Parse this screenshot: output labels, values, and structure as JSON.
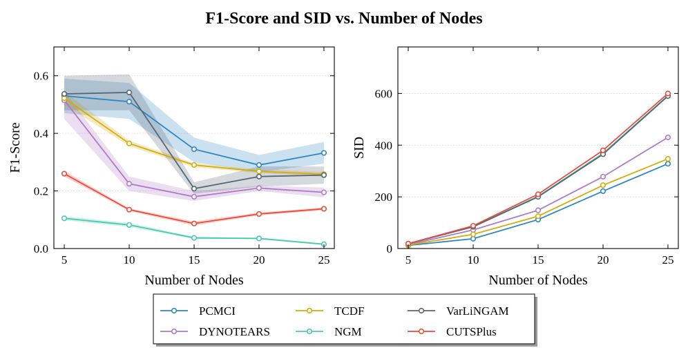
{
  "suptitle": "F1-Score  and SID vs. Number of Nodes",
  "chart_data": [
    {
      "type": "line",
      "id": "f1",
      "title": "",
      "xlabel": "Number of Nodes",
      "ylabel": "F1-Score",
      "x": [
        5,
        10,
        15,
        20,
        25
      ],
      "xlim": [
        4.2,
        25.8
      ],
      "ylim": [
        0,
        0.7
      ],
      "xticks": [
        5,
        10,
        15,
        20,
        25
      ],
      "yticks": [
        0.0,
        0.2,
        0.4,
        0.6
      ],
      "ytick_labels": [
        "0.0",
        "0.2",
        "0.4",
        "0.6"
      ],
      "series": [
        {
          "name": "PCMCI",
          "color": "#2e86c1",
          "values": [
            0.53,
            0.51,
            0.345,
            0.29,
            0.332
          ],
          "lower": [
            0.47,
            0.45,
            0.3,
            0.265,
            0.295
          ],
          "upper": [
            0.59,
            0.575,
            0.385,
            0.325,
            0.37
          ]
        },
        {
          "name": "DYNOTEARS",
          "color": "#af7ac5",
          "values": [
            0.515,
            0.225,
            0.18,
            0.21,
            0.195
          ],
          "lower": [
            0.45,
            0.2,
            0.165,
            0.2,
            0.178
          ],
          "upper": [
            0.545,
            0.25,
            0.2,
            0.218,
            0.212
          ]
        },
        {
          "name": "TCDF",
          "color": "#d4ac0d",
          "values": [
            0.522,
            0.365,
            0.29,
            0.268,
            0.258
          ],
          "lower": [
            0.5,
            0.355,
            0.283,
            0.262,
            0.25
          ],
          "upper": [
            0.545,
            0.375,
            0.297,
            0.274,
            0.266
          ]
        },
        {
          "name": "NGM",
          "color": "#48c9b0",
          "values": [
            0.105,
            0.082,
            0.037,
            0.035,
            0.015
          ],
          "lower": [
            0.098,
            0.075,
            0.033,
            0.032,
            0.012
          ],
          "upper": [
            0.112,
            0.089,
            0.041,
            0.038,
            0.018
          ]
        },
        {
          "name": "VarLiNGAM",
          "color": "#566573",
          "values": [
            0.537,
            0.542,
            0.208,
            0.25,
            0.255
          ],
          "lower": [
            0.48,
            0.48,
            0.19,
            0.215,
            0.225
          ],
          "upper": [
            0.6,
            0.605,
            0.23,
            0.285,
            0.285
          ]
        },
        {
          "name": "CUTSPlus",
          "color": "#e74c3c",
          "values": [
            0.26,
            0.135,
            0.087,
            0.12,
            0.138
          ],
          "lower": [
            0.25,
            0.13,
            0.08,
            0.115,
            0.133
          ],
          "upper": [
            0.27,
            0.14,
            0.094,
            0.125,
            0.143
          ]
        }
      ]
    },
    {
      "type": "line",
      "id": "sid",
      "title": "",
      "xlabel": "Number of Nodes",
      "ylabel": "SID",
      "x": [
        5,
        10,
        15,
        20,
        25
      ],
      "xlim": [
        4.2,
        25.8
      ],
      "ylim": [
        0,
        780
      ],
      "xticks": [
        5,
        10,
        15,
        20,
        25
      ],
      "yticks": [
        0,
        200,
        400,
        600
      ],
      "ytick_labels": [
        "0",
        "200",
        "400",
        "600"
      ],
      "series": [
        {
          "name": "PCMCI",
          "color": "#2e86c1",
          "values": [
            12,
            38,
            112,
            222,
            328
          ]
        },
        {
          "name": "DYNOTEARS",
          "color": "#af7ac5",
          "values": [
            15,
            72,
            148,
            278,
            430
          ]
        },
        {
          "name": "TCDF",
          "color": "#d4ac0d",
          "values": [
            13,
            55,
            125,
            245,
            347
          ]
        },
        {
          "name": "NGM",
          "color": "#48c9b0",
          "values": [
            18,
            85,
            202,
            368,
            592
          ]
        },
        {
          "name": "VarLiNGAM",
          "color": "#566573",
          "values": [
            19,
            84,
            200,
            365,
            590
          ]
        },
        {
          "name": "CUTSPlus",
          "color": "#e74c3c",
          "values": [
            19,
            88,
            210,
            380,
            600
          ]
        }
      ]
    }
  ],
  "legend": {
    "placement": "bottom-center",
    "entries": [
      {
        "name": "PCMCI",
        "color": "#2e86c1"
      },
      {
        "name": "TCDF",
        "color": "#d4ac0d"
      },
      {
        "name": "VarLiNGAM",
        "color": "#566573"
      },
      {
        "name": "DYNOTEARS",
        "color": "#af7ac5"
      },
      {
        "name": "NGM",
        "color": "#48c9b0"
      },
      {
        "name": "CUTSPlus",
        "color": "#e74c3c"
      }
    ]
  }
}
